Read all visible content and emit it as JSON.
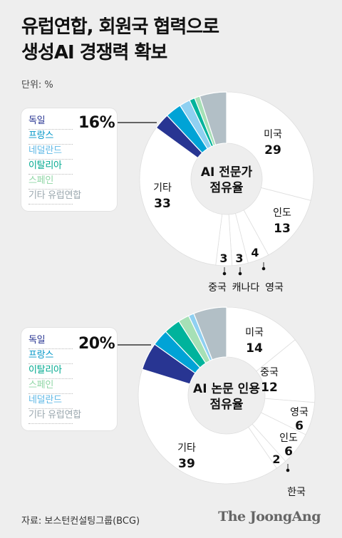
{
  "title_line1": "유럽연합, 회원국 협력으로",
  "title_line2": "생성AI 경쟁력 확보",
  "unit": "단위: %",
  "source": "자료: 보스턴컨설팅그룹(BCG)",
  "logo": "The JoongAng",
  "chart_data": [
    {
      "type": "pie",
      "center_label": [
        "AI 전문가",
        "점유율"
      ],
      "slices": [
        {
          "name": "미국",
          "value": 29,
          "color": "#ffffff"
        },
        {
          "name": "인도",
          "value": 13,
          "color": "#ffffff"
        },
        {
          "name": "영국",
          "value": 4,
          "color": "#ffffff"
        },
        {
          "name": "캐나다",
          "value": 3,
          "color": "#ffffff"
        },
        {
          "name": "중국",
          "value": 3,
          "color": "#ffffff"
        },
        {
          "name": "기타",
          "value": 33,
          "color": "#ffffff"
        },
        {
          "name": "독일",
          "value": 3,
          "color": "#283592"
        },
        {
          "name": "프랑스",
          "value": 3,
          "color": "#00a3d6"
        },
        {
          "name": "네덜란드",
          "value": 2,
          "color": "#8fd0f1"
        },
        {
          "name": "이탈리아",
          "value": 1,
          "color": "#00b39c"
        },
        {
          "name": "스페인",
          "value": 1,
          "color": "#a6e0b6"
        },
        {
          "name": "기타 유럽연합",
          "value": 5,
          "color": "#b2bfc6"
        }
      ],
      "eu_total_label": "16%",
      "legend": [
        {
          "label": "독일",
          "color": "#283592"
        },
        {
          "label": "프랑스",
          "color": "#0096c7"
        },
        {
          "label": "네덜란드",
          "color": "#5fb8e6"
        },
        {
          "label": "이탈리아",
          "color": "#00a98f"
        },
        {
          "label": "스페인",
          "color": "#8fd6a5"
        },
        {
          "label": "기타 유럽연합",
          "color": "#9aa7ae"
        }
      ],
      "value_labels": [
        {
          "name": "미국",
          "value": "29"
        },
        {
          "name": "인도",
          "value": "13"
        },
        {
          "name": "영국",
          "value": "4"
        },
        {
          "name": "캐나다",
          "value": "3"
        },
        {
          "name": "중국",
          "value": "3"
        },
        {
          "name": "기타",
          "value": "33"
        }
      ]
    },
    {
      "type": "pie",
      "center_label": [
        "AI 논문 인용",
        "점유율"
      ],
      "slices": [
        {
          "name": "미국",
          "value": 14,
          "color": "#ffffff"
        },
        {
          "name": "중국",
          "value": 12,
          "color": "#ffffff"
        },
        {
          "name": "영국",
          "value": 6,
          "color": "#ffffff"
        },
        {
          "name": "인도",
          "value": 6,
          "color": "#ffffff"
        },
        {
          "name": "한국",
          "value": 2,
          "color": "#ffffff"
        },
        {
          "name": "기타",
          "value": 39,
          "color": "#ffffff"
        },
        {
          "name": "독일",
          "value": 5,
          "color": "#283592"
        },
        {
          "name": "프랑스",
          "value": 3,
          "color": "#00a3d6"
        },
        {
          "name": "이탈리아",
          "value": 3,
          "color": "#00b39c"
        },
        {
          "name": "스페인",
          "value": 2,
          "color": "#a6e0b6"
        },
        {
          "name": "네덜란드",
          "value": 1,
          "color": "#8fd0f1"
        },
        {
          "name": "기타 유럽연합",
          "value": 6,
          "color": "#b2bfc6"
        }
      ],
      "eu_total_label": "20%",
      "legend": [
        {
          "label": "독일",
          "color": "#283592"
        },
        {
          "label": "프랑스",
          "color": "#0096c7"
        },
        {
          "label": "이탈리아",
          "color": "#00a98f"
        },
        {
          "label": "스페인",
          "color": "#8fd6a5"
        },
        {
          "label": "네덜란드",
          "color": "#5fb8e6"
        },
        {
          "label": "기타 유럽연합",
          "color": "#9aa7ae"
        }
      ],
      "value_labels": [
        {
          "name": "미국",
          "value": "14"
        },
        {
          "name": "중국",
          "value": "12"
        },
        {
          "name": "영국",
          "value": "6"
        },
        {
          "name": "인도",
          "value": "6"
        },
        {
          "name": "한국",
          "value": "2"
        },
        {
          "name": "기타",
          "value": "39"
        }
      ]
    }
  ]
}
